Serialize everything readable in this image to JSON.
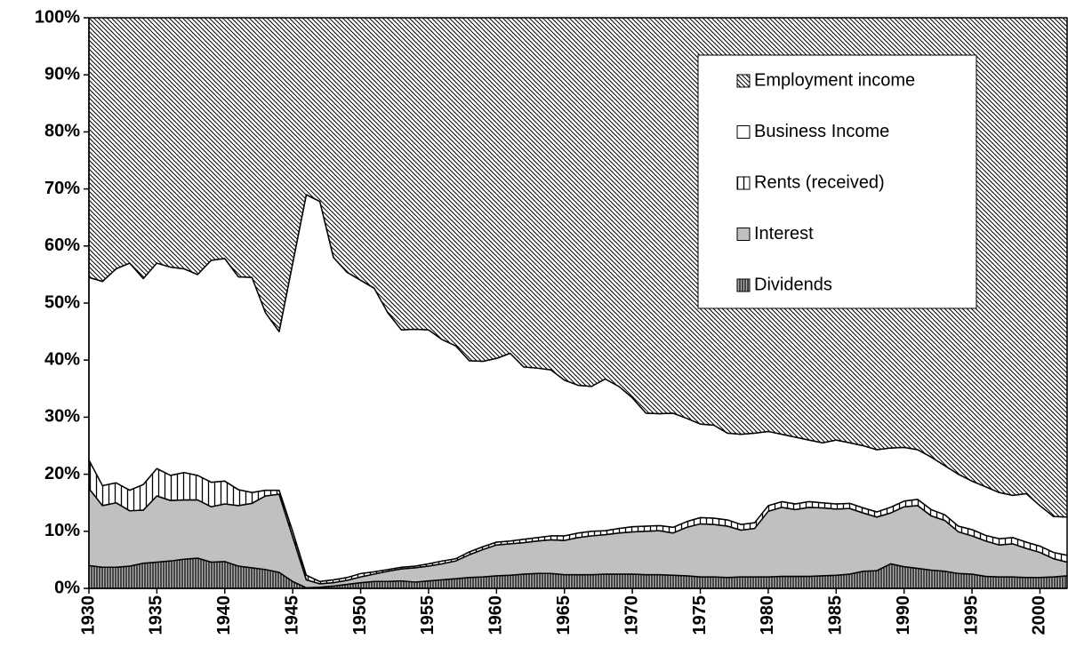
{
  "chart_data": {
    "type": "stacked-area-percent",
    "x": [
      1930,
      1931,
      1932,
      1933,
      1934,
      1935,
      1936,
      1937,
      1938,
      1939,
      1940,
      1941,
      1942,
      1943,
      1944,
      1945,
      1946,
      1947,
      1948,
      1949,
      1950,
      1951,
      1952,
      1953,
      1954,
      1955,
      1956,
      1957,
      1958,
      1959,
      1960,
      1961,
      1962,
      1963,
      1964,
      1965,
      1966,
      1967,
      1968,
      1969,
      1970,
      1971,
      1972,
      1973,
      1974,
      1975,
      1976,
      1977,
      1978,
      1979,
      1980,
      1981,
      1982,
      1983,
      1984,
      1985,
      1986,
      1987,
      1988,
      1989,
      1990,
      1991,
      1992,
      1993,
      1994,
      1995,
      1996,
      1997,
      1998,
      1999,
      2000,
      2001,
      2002
    ],
    "series": [
      {
        "name": "Dividends",
        "color": "#000000",
        "hatch": "dense-vertical",
        "values": [
          4,
          3.7,
          3.7,
          3.9,
          4.4,
          4.6,
          4.8,
          5.1,
          5.3,
          4.6,
          4.7,
          3.9,
          3.6,
          3.3,
          2.8,
          1.2,
          0.1,
          0.2,
          0.4,
          0.7,
          1.0,
          1.2,
          1.2,
          1.3,
          1.1,
          1.3,
          1.5,
          1.7,
          1.9,
          2.0,
          2.2,
          2.3,
          2.5,
          2.6,
          2.6,
          2.4,
          2.4,
          2.4,
          2.5,
          2.5,
          2.5,
          2.4,
          2.4,
          2.3,
          2.2,
          2.0,
          2.0,
          1.9,
          2.0,
          2.0,
          2.0,
          2.1,
          2.1,
          2.1,
          2.2,
          2.3,
          2.5,
          3.0,
          3.1,
          4.3,
          3.8,
          3.5,
          3.2,
          3.0,
          2.6,
          2.5,
          2.1,
          2.0,
          2.0,
          1.9,
          1.9,
          2.0,
          2.2
        ]
      },
      {
        "name": "Interest",
        "color": "#c0c0c0",
        "hatch": "none",
        "values": [
          13.5,
          10.8,
          11.3,
          9.7,
          9.3,
          11.6,
          10.6,
          10.4,
          10.2,
          9.7,
          10.1,
          10.6,
          11.3,
          12.9,
          13.7,
          7.8,
          1.4,
          0.6,
          0.6,
          0.7,
          1.0,
          1.3,
          1.8,
          2.1,
          2.5,
          2.6,
          2.8,
          3.1,
          4.0,
          4.8,
          5.4,
          5.5,
          5.5,
          5.7,
          5.9,
          6.0,
          6.5,
          6.8,
          6.9,
          7.2,
          7.4,
          7.6,
          7.7,
          7.4,
          8.5,
          9.3,
          9.2,
          9.0,
          8.2,
          8.5,
          11.5,
          12.1,
          11.7,
          12.1,
          11.9,
          11.6,
          11.5,
          10.2,
          9.4,
          8.9,
          10.5,
          11.0,
          9.5,
          8.9,
          7.3,
          6.7,
          6.2,
          5.6,
          5.8,
          5.1,
          4.4,
          3.2,
          2.4
        ]
      },
      {
        "name": "Rents (received)",
        "color": "#000000",
        "hatch": "vertical",
        "values": [
          5.0,
          3.5,
          3.5,
          3.6,
          4.5,
          4.8,
          4.4,
          4.8,
          4.3,
          4.3,
          4.0,
          2.8,
          1.9,
          1.0,
          0.7,
          1.0,
          0.8,
          0.4,
          0.5,
          0.5,
          0.6,
          0.4,
          0.3,
          0.3,
          0.3,
          0.4,
          0.5,
          0.4,
          0.5,
          0.5,
          0.5,
          0.5,
          0.6,
          0.6,
          0.7,
          0.8,
          0.8,
          0.8,
          0.7,
          0.8,
          0.9,
          0.9,
          0.9,
          1.0,
          1.0,
          1.1,
          1.1,
          1.1,
          1.0,
          1.0,
          1.0,
          1.0,
          1.0,
          1.0,
          0.9,
          0.9,
          0.9,
          0.9,
          0.9,
          1.0,
          1.0,
          1.1,
          1.1,
          1.0,
          1.0,
          1.1,
          1.0,
          1.1,
          1.1,
          1.1,
          1.1,
          1.1,
          1.2
        ]
      },
      {
        "name": "Business Income",
        "color": "#ffffff",
        "hatch": "none",
        "values": [
          32.0,
          35.8,
          37.5,
          39.8,
          36.1,
          36.0,
          36.5,
          35.7,
          35.2,
          38.9,
          39.0,
          37.3,
          37.7,
          31.1,
          27.8,
          47.0,
          66.7,
          66.6,
          56.5,
          53.5,
          51.4,
          49.7,
          45.0,
          41.6,
          41.5,
          41.0,
          38.8,
          37.3,
          33.5,
          32.5,
          32.2,
          32.9,
          30.2,
          29.7,
          29.1,
          27.3,
          25.9,
          25.4,
          26.6,
          24.9,
          22.6,
          19.8,
          19.6,
          20.0,
          18.1,
          16.4,
          16.3,
          15.2,
          15.8,
          15.7,
          13.0,
          11.8,
          11.7,
          10.8,
          10.5,
          11.2,
          10.6,
          10.9,
          10.9,
          10.4,
          9.4,
          8.7,
          9.2,
          8.6,
          9.1,
          8.5,
          8.5,
          8.1,
          7.4,
          8.5,
          7.1,
          6.3,
          6.7
        ]
      },
      {
        "name": "Employment income",
        "color": "#000000",
        "hatch": "diagonal",
        "values": [
          45.5,
          46.2,
          44.0,
          43.0,
          45.7,
          43.0,
          43.7,
          44.0,
          45.0,
          42.5,
          42.2,
          45.4,
          45.5,
          51.7,
          55.0,
          43.0,
          31.0,
          32.2,
          42.0,
          44.6,
          46.0,
          47.4,
          51.7,
          54.7,
          54.6,
          54.7,
          56.4,
          57.5,
          60.1,
          60.2,
          59.7,
          58.8,
          61.2,
          61.4,
          61.7,
          63.5,
          64.4,
          64.6,
          63.3,
          64.6,
          66.6,
          69.3,
          69.4,
          69.3,
          70.2,
          71.2,
          71.4,
          72.8,
          73.0,
          72.8,
          72.5,
          73.0,
          73.5,
          74.0,
          74.5,
          74.0,
          74.5,
          75.0,
          75.7,
          75.4,
          75.3,
          75.7,
          77.0,
          78.5,
          80.0,
          81.2,
          82.2,
          83.2,
          83.7,
          83.4,
          85.5,
          87.4,
          87.5
        ]
      }
    ],
    "xlim": [
      1930,
      2002
    ],
    "xticks": [
      1930,
      1935,
      1940,
      1945,
      1950,
      1955,
      1960,
      1965,
      1970,
      1975,
      1980,
      1985,
      1990,
      1995,
      2000
    ],
    "ylim": [
      0,
      100
    ],
    "yticks": [
      {
        "value": 0,
        "label": "0%"
      },
      {
        "value": 10,
        "label": "10%"
      },
      {
        "value": 20,
        "label": "20%"
      },
      {
        "value": 30,
        "label": "30%"
      },
      {
        "value": 40,
        "label": "40%"
      },
      {
        "value": 50,
        "label": "50%"
      },
      {
        "value": 60,
        "label": "60%"
      },
      {
        "value": 70,
        "label": "70%"
      },
      {
        "value": 80,
        "label": "80%"
      },
      {
        "value": 90,
        "label": "90%"
      },
      {
        "value": 100,
        "label": "100%"
      }
    ],
    "grid": false,
    "legend": "top-right"
  }
}
